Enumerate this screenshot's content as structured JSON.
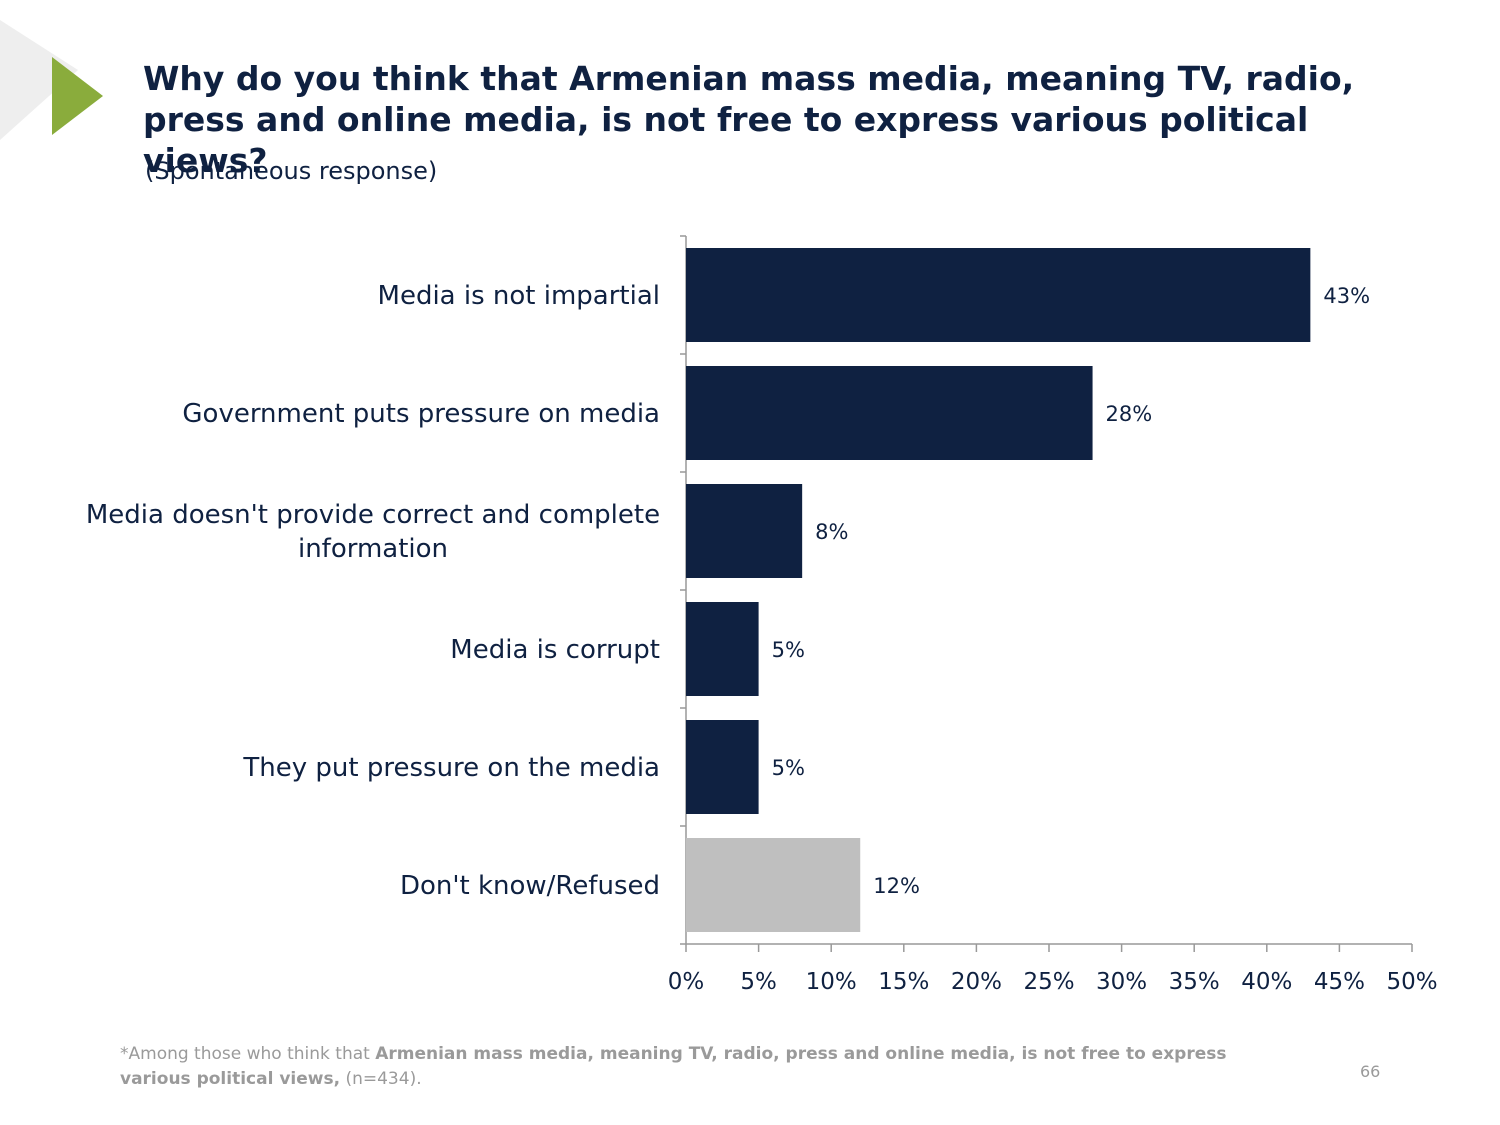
{
  "title": "Why do you think that Armenian mass media, meaning TV, radio, press and online media, is not free to express various political views?",
  "subtitle": "(Spontaneous response)",
  "chart_data": {
    "type": "bar",
    "orientation": "horizontal",
    "categories": [
      "Media is not impartial",
      "Government puts pressure on media",
      "Media doesn't provide correct and complete information",
      "Media is corrupt",
      "They put pressure on the media",
      "Don't know/Refused"
    ],
    "category_label_lines": [
      [
        "Media is not impartial"
      ],
      [
        "Government puts pressure on media"
      ],
      [
        "Media doesn't provide correct and complete",
        "information"
      ],
      [
        "Media is corrupt"
      ],
      [
        "They put pressure on the media"
      ],
      [
        "Don't know/Refused"
      ]
    ],
    "values": [
      43,
      28,
      8,
      5,
      5,
      12
    ],
    "value_labels": [
      "43%",
      "28%",
      "8%",
      "5%",
      "5%",
      "12%"
    ],
    "bar_colors": [
      "#0f2141",
      "#0f2141",
      "#0f2141",
      "#0f2141",
      "#0f2141",
      "#bfbfbf"
    ],
    "xlim": [
      0,
      50
    ],
    "xticks": [
      0,
      5,
      10,
      15,
      20,
      25,
      30,
      35,
      40,
      45,
      50
    ],
    "xtick_labels": [
      "0%",
      "5%",
      "10%",
      "15%",
      "20%",
      "25%",
      "30%",
      "35%",
      "40%",
      "45%",
      "50%"
    ],
    "grid": false,
    "legend": "none",
    "title": "",
    "xlabel": "",
    "ylabel": ""
  },
  "footnote": {
    "prefix": "*Among those who think that ",
    "bold": "Armenian mass media, meaning TV, radio, press and online media, is not free to express various political views,",
    "suffix": " (n=434)."
  },
  "page_number": "66",
  "colors": {
    "navy": "#0f2141",
    "gray_bar": "#bfbfbf",
    "accent_green": "#8aac3c",
    "footnote_gray": "#9a9a9a",
    "axis": "#999999"
  }
}
